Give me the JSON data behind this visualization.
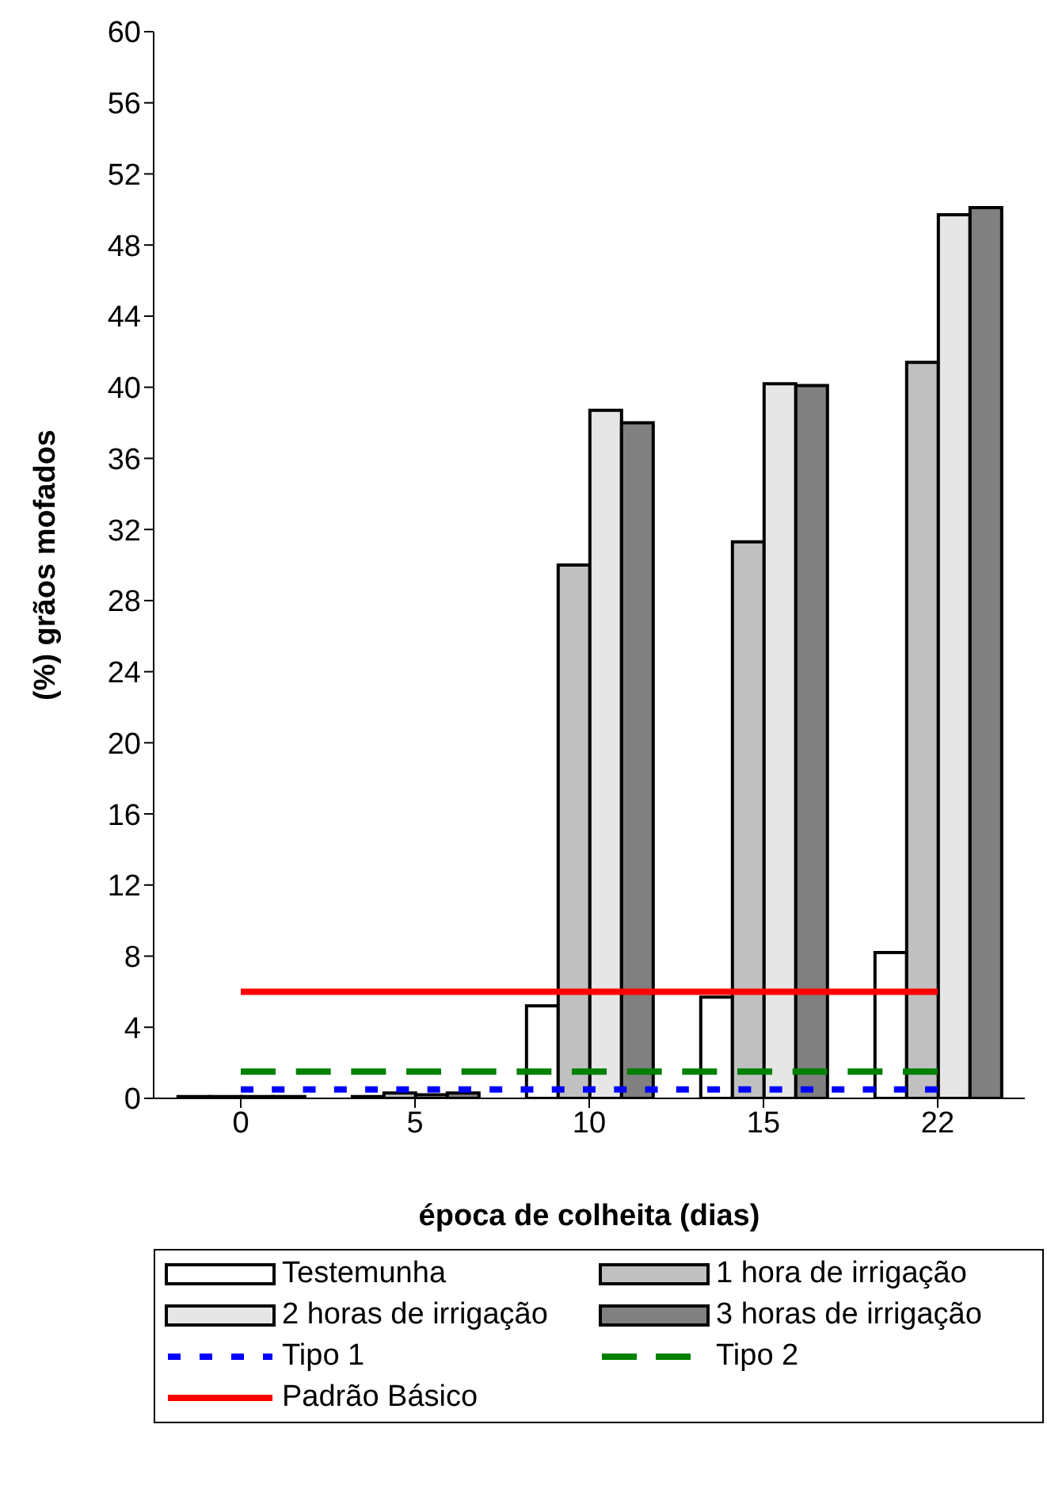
{
  "chart_data": {
    "type": "bar",
    "xlabel": "época de colheita (dias)",
    "ylabel": "(%) grãos mofados",
    "categories": [
      "0",
      "5",
      "10",
      "15",
      "22"
    ],
    "ylim": [
      0,
      60
    ],
    "yticks": [
      0,
      4,
      8,
      12,
      16,
      20,
      24,
      28,
      32,
      36,
      40,
      44,
      48,
      52,
      56,
      60
    ],
    "grid": false,
    "legend": "bottom",
    "series": [
      {
        "name": "Testemunha",
        "color": "#ffffff",
        "values": [
          0.1,
          0.1,
          5.2,
          5.7,
          8.2
        ]
      },
      {
        "name": "1 hora de irrigação",
        "color": "#c0c0c0",
        "values": [
          0.1,
          0.3,
          30,
          31.3,
          41.4
        ]
      },
      {
        "name": "2 horas de irrigação",
        "color": "#e6e6e6",
        "values": [
          0.1,
          0.2,
          38.7,
          40.2,
          49.7
        ]
      },
      {
        "name": "3 horas de irrigação",
        "color": "#808080",
        "values": [
          0.1,
          0.3,
          38,
          40.1,
          50.1
        ]
      },
      {
        "name": "Tipo 1",
        "type": "line",
        "color": "#0000ff",
        "line_style": "dotted",
        "values": [
          0.5,
          0.5,
          0.5,
          0.5,
          0.5
        ]
      },
      {
        "name": "Tipo 2",
        "type": "line",
        "color": "#008000",
        "line_style": "dashed",
        "values": [
          1.5,
          1.5,
          1.5,
          1.5,
          1.5
        ]
      },
      {
        "name": "Padrão Básico",
        "type": "line",
        "color": "#ff0000",
        "line_style": "solid",
        "values": [
          6,
          6,
          6,
          6,
          6
        ]
      }
    ]
  }
}
